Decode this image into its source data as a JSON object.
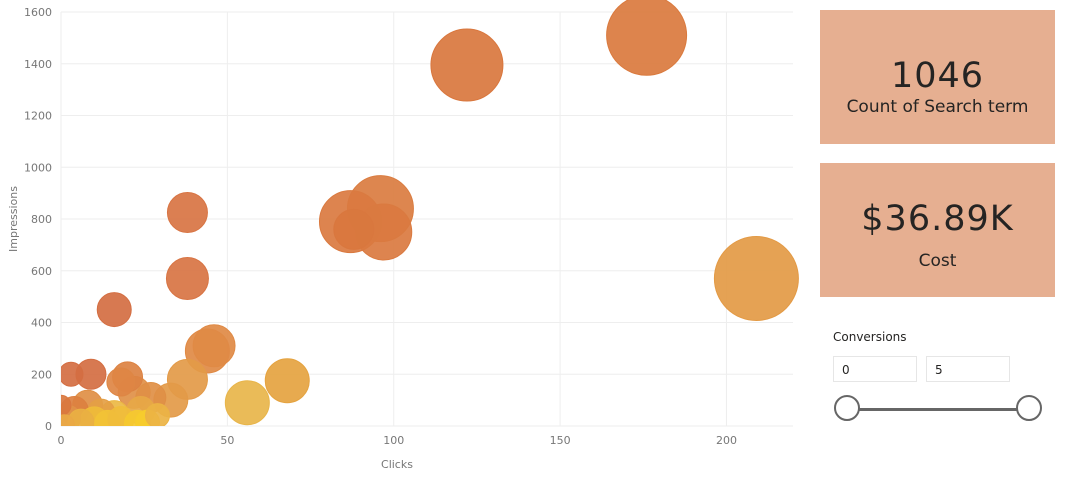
{
  "chart_data": {
    "type": "scatter",
    "xlabel": "Clicks",
    "ylabel": "Impressions",
    "xlim": [
      0,
      220
    ],
    "ylim": [
      0,
      1600
    ],
    "x_ticks": [
      0,
      50,
      100,
      150,
      200
    ],
    "y_ticks": [
      0,
      200,
      400,
      600,
      800,
      1000,
      1200,
      1400,
      1600
    ],
    "grid": true,
    "points": [
      {
        "x": 176,
        "y": 1510,
        "size": 40,
        "color": "#da7a3e"
      },
      {
        "x": 122,
        "y": 1395,
        "size": 36,
        "color": "#d9773e"
      },
      {
        "x": 209,
        "y": 570,
        "size": 42,
        "color": "#e39a45"
      },
      {
        "x": 96,
        "y": 840,
        "size": 33,
        "color": "#da7c40"
      },
      {
        "x": 87,
        "y": 790,
        "size": 31,
        "color": "#da7a40"
      },
      {
        "x": 97,
        "y": 750,
        "size": 28,
        "color": "#da7a40"
      },
      {
        "x": 88,
        "y": 760,
        "size": 20,
        "color": "#d9773e"
      },
      {
        "x": 38,
        "y": 825,
        "size": 20,
        "color": "#d87443"
      },
      {
        "x": 38,
        "y": 570,
        "size": 21,
        "color": "#d87443"
      },
      {
        "x": 16,
        "y": 450,
        "size": 17,
        "color": "#d46e42"
      },
      {
        "x": 46,
        "y": 310,
        "size": 21,
        "color": "#e08a45"
      },
      {
        "x": 44,
        "y": 290,
        "size": 22,
        "color": "#e08a45"
      },
      {
        "x": 68,
        "y": 175,
        "size": 22,
        "color": "#e5a340"
      },
      {
        "x": 56,
        "y": 90,
        "size": 22,
        "color": "#e8b54a"
      },
      {
        "x": 38,
        "y": 180,
        "size": 20,
        "color": "#e39a48"
      },
      {
        "x": 33,
        "y": 100,
        "size": 17,
        "color": "#e39a48"
      },
      {
        "x": 27,
        "y": 110,
        "size": 15,
        "color": "#df8f45"
      },
      {
        "x": 20,
        "y": 190,
        "size": 15,
        "color": "#dc8242"
      },
      {
        "x": 9,
        "y": 200,
        "size": 15,
        "color": "#d46e42"
      },
      {
        "x": 3,
        "y": 200,
        "size": 12,
        "color": "#d46e42"
      },
      {
        "x": 18,
        "y": 170,
        "size": 14,
        "color": "#de8644"
      },
      {
        "x": 22,
        "y": 130,
        "size": 16,
        "color": "#e09048"
      },
      {
        "x": 24,
        "y": 60,
        "size": 14,
        "color": "#e7a846"
      },
      {
        "x": 16,
        "y": 40,
        "size": 15,
        "color": "#ecb844"
      },
      {
        "x": 12,
        "y": 50,
        "size": 14,
        "color": "#e49f45"
      },
      {
        "x": 8,
        "y": 80,
        "size": 15,
        "color": "#df8f45"
      },
      {
        "x": 4,
        "y": 60,
        "size": 14,
        "color": "#dc8040"
      },
      {
        "x": 2,
        "y": 30,
        "size": 13,
        "color": "#e09048"
      },
      {
        "x": 0,
        "y": 80,
        "size": 10,
        "color": "#d9773e"
      },
      {
        "x": 6,
        "y": 15,
        "size": 13,
        "color": "#e9b043"
      },
      {
        "x": 10,
        "y": 20,
        "size": 14,
        "color": "#efbb3a"
      },
      {
        "x": 14,
        "y": 10,
        "size": 13,
        "color": "#f2c236"
      },
      {
        "x": 18,
        "y": 25,
        "size": 13,
        "color": "#f0bd3b"
      },
      {
        "x": 23,
        "y": 10,
        "size": 13,
        "color": "#f5c930"
      },
      {
        "x": 26,
        "y": 15,
        "size": 12,
        "color": "#f6cc2c"
      },
      {
        "x": 1,
        "y": 5,
        "size": 10,
        "color": "#e9a845"
      },
      {
        "x": 29,
        "y": 40,
        "size": 12,
        "color": "#ebb344"
      }
    ]
  },
  "cards": [
    {
      "value": "1046",
      "label": "Count of Search term"
    },
    {
      "value": "$36.89K",
      "label": "Cost"
    }
  ],
  "slicer": {
    "title": "Conversions",
    "min_value": "0",
    "max_value": "5",
    "range_low_fraction": 0,
    "range_high_fraction": 1
  },
  "colors": {
    "card_background": "#e6af91",
    "gridline": "#eeeeee",
    "slider": "#666666"
  }
}
